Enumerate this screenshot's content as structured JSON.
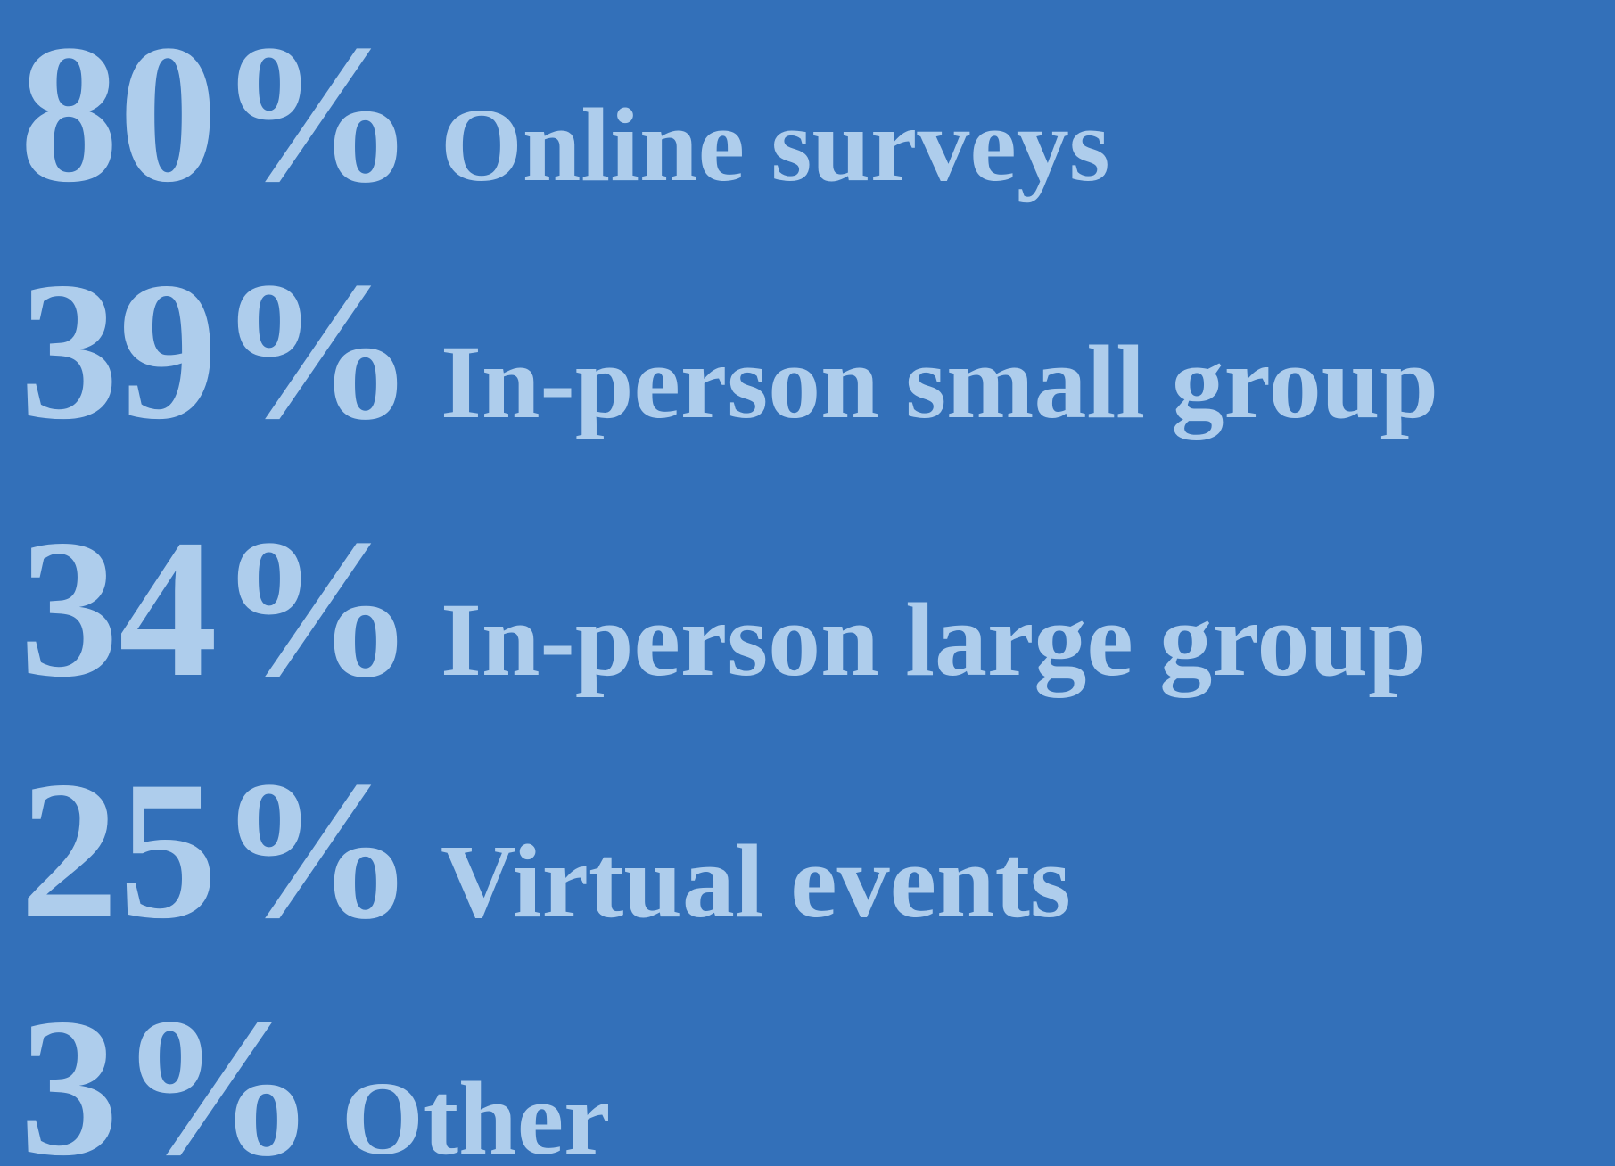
{
  "items": [
    {
      "stat": "80%",
      "label": "Online surveys"
    },
    {
      "stat": "39%",
      "label": "In-person small group"
    },
    {
      "stat": "34%",
      "label": "In-person large group"
    },
    {
      "stat": "25%",
      "label": "Virtual events"
    },
    {
      "stat": "3%",
      "label": "Other"
    }
  ]
}
